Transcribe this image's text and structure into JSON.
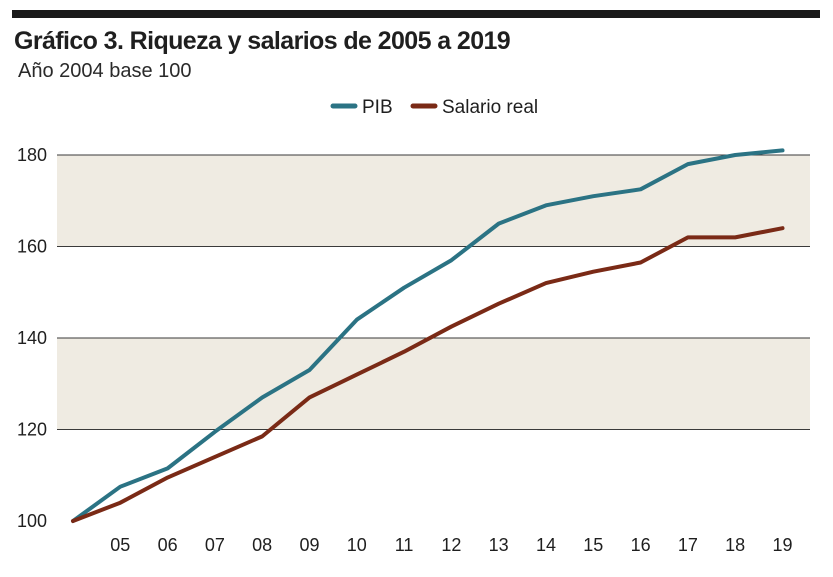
{
  "chart_data": {
    "type": "line",
    "title": "Gráfico 3. Riqueza y salarios de 2005 a 2019",
    "subtitle": "Año 2004 base 100",
    "categories": [
      "",
      "05",
      "06",
      "07",
      "08",
      "09",
      "10",
      "11",
      "12",
      "13",
      "14",
      "15",
      "16",
      "17",
      "18",
      "19"
    ],
    "ylim": [
      100,
      180
    ],
    "yticks": [
      100,
      120,
      140,
      160,
      180
    ],
    "legend_position": "top-center",
    "series": [
      {
        "name": "PIB",
        "color": "#2b7384",
        "values": [
          100,
          107.5,
          111.5,
          119.5,
          127,
          133,
          144,
          151,
          157,
          165,
          169,
          171,
          172.5,
          178,
          180,
          181
        ]
      },
      {
        "name": "Salario real",
        "color": "#7a2a16",
        "values": [
          100,
          104,
          109.5,
          114,
          118.5,
          127,
          132,
          137,
          142.5,
          147.5,
          152,
          154.5,
          156.5,
          162,
          162,
          164
        ]
      }
    ],
    "band_color": "#efebe2"
  }
}
